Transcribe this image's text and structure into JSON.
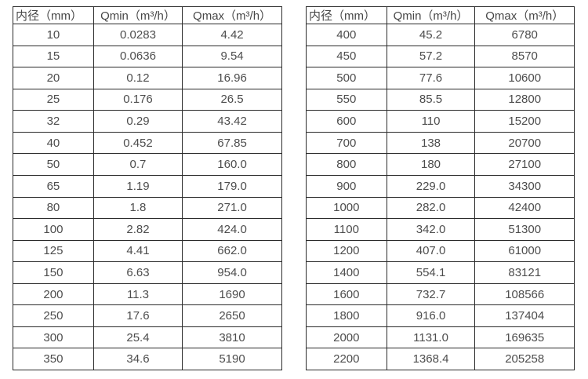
{
  "tables": [
    {
      "name": "flow-table-small-diameters",
      "headers": [
        "内径（mm）",
        "Qmin（m³/h）",
        "Qmax（m³/h）"
      ],
      "rows": [
        [
          "10",
          "0.0283",
          "4.42"
        ],
        [
          "15",
          "0.0636",
          "9.54"
        ],
        [
          "20",
          "0.12",
          "16.96"
        ],
        [
          "25",
          "0.176",
          "26.5"
        ],
        [
          "32",
          "0.29",
          "43.42"
        ],
        [
          "40",
          "0.452",
          "67.85"
        ],
        [
          "50",
          "0.7",
          "160.0"
        ],
        [
          "65",
          "1.19",
          "179.0"
        ],
        [
          "80",
          "1.8",
          "271.0"
        ],
        [
          "100",
          "2.82",
          "424.0"
        ],
        [
          "125",
          "4.41",
          "662.0"
        ],
        [
          "150",
          "6.63",
          "954.0"
        ],
        [
          "200",
          "11.3",
          "1690"
        ],
        [
          "250",
          "17.6",
          "2650"
        ],
        [
          "300",
          "25.4",
          "3810"
        ],
        [
          "350",
          "34.6",
          "5190"
        ]
      ]
    },
    {
      "name": "flow-table-large-diameters",
      "headers": [
        "内径（mm）",
        "Qmin（m³/h）",
        "Qmax（m³/h）"
      ],
      "rows": [
        [
          "400",
          "45.2",
          "6780"
        ],
        [
          "450",
          "57.2",
          "8570"
        ],
        [
          "500",
          "77.6",
          "10600"
        ],
        [
          "550",
          "85.5",
          "12800"
        ],
        [
          "600",
          "110",
          "15200"
        ],
        [
          "700",
          "138",
          "20700"
        ],
        [
          "800",
          "180",
          "27100"
        ],
        [
          "900",
          "229.0",
          "34300"
        ],
        [
          "1000",
          "282.0",
          "42400"
        ],
        [
          "1100",
          "342.0",
          "51300"
        ],
        [
          "1200",
          "407.0",
          "61000"
        ],
        [
          "1400",
          "554.1",
          "83121"
        ],
        [
          "1600",
          "732.7",
          "108566"
        ],
        [
          "1800",
          "916.0",
          "137404"
        ],
        [
          "2000",
          "1131.0",
          "169635"
        ],
        [
          "2200",
          "1368.4",
          "205258"
        ]
      ]
    }
  ],
  "style": {
    "border_color": "#2b2b2b",
    "text_color": "#4d4d4d",
    "background_color": "#ffffff"
  },
  "column_widths_percent": [
    30,
    33,
    37
  ]
}
